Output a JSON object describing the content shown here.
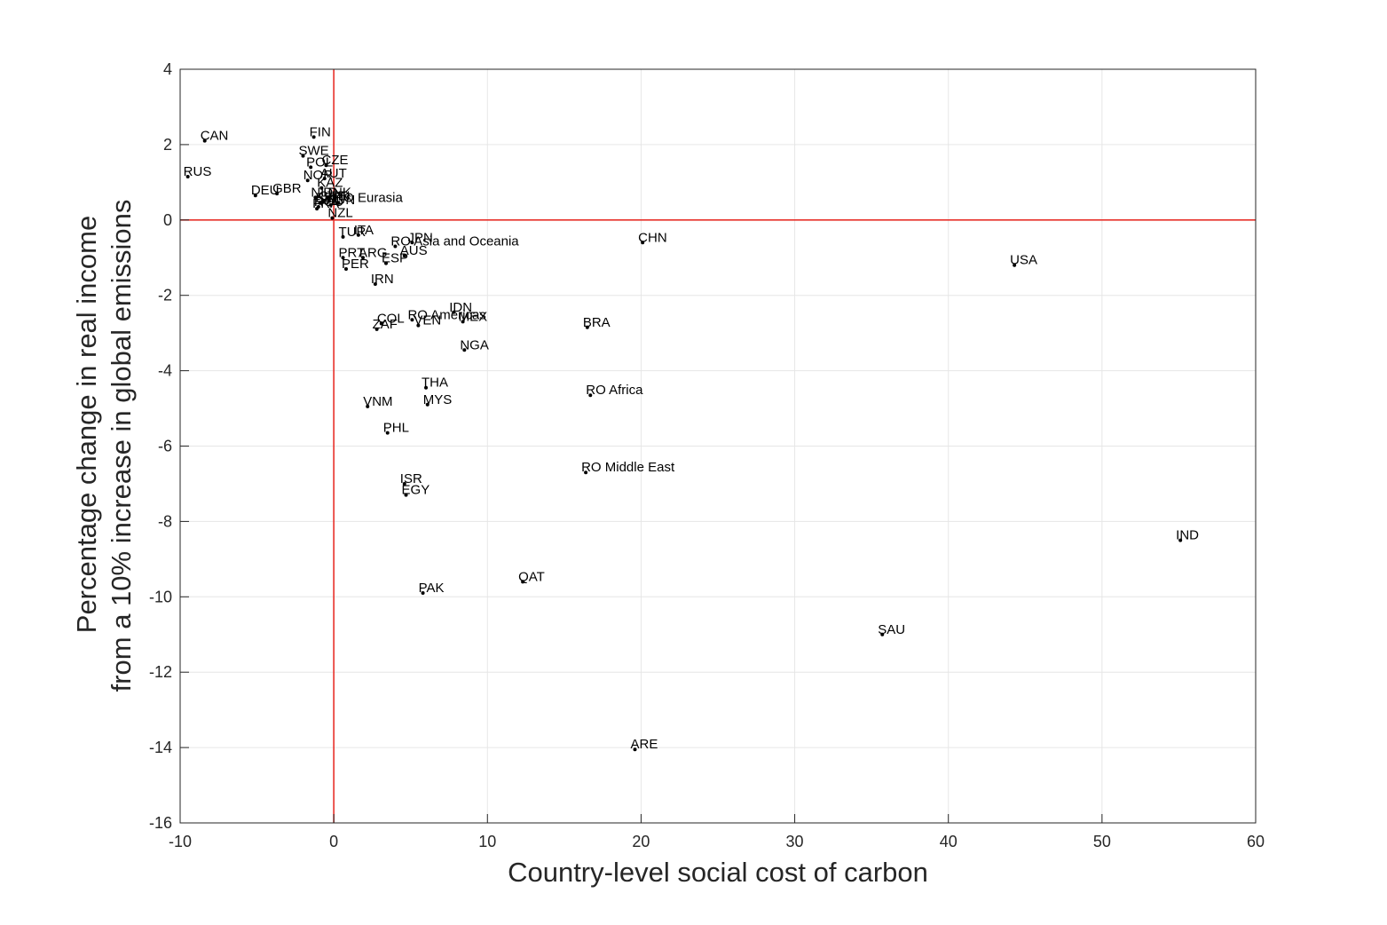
{
  "chart_data": {
    "type": "scatter",
    "title": "",
    "xlabel": "Country-level social cost of carbon",
    "ylabel_lines": [
      "Percentage change in real income",
      "from a 10% increase in global emissions"
    ],
    "xlim": [
      -10,
      60
    ],
    "ylim": [
      -16,
      4
    ],
    "xticks": [
      -10,
      0,
      10,
      20,
      30,
      40,
      50,
      60
    ],
    "yticks": [
      -16,
      -14,
      -12,
      -10,
      -8,
      -6,
      -4,
      -2,
      0,
      2,
      4
    ],
    "grid": true,
    "reference_lines": {
      "x": 0,
      "y": 0,
      "color": "#e8302a"
    },
    "point_color": "#000000",
    "points": [
      {
        "label": "CAN",
        "x": -8.4,
        "y": 2.1
      },
      {
        "label": "RUS",
        "x": -9.5,
        "y": 1.15
      },
      {
        "label": "FIN",
        "x": -1.3,
        "y": 2.2
      },
      {
        "label": "SWE",
        "x": -2.0,
        "y": 1.7
      },
      {
        "label": "POL",
        "x": -1.5,
        "y": 1.4
      },
      {
        "label": "CZE",
        "x": -0.5,
        "y": 1.45
      },
      {
        "label": "NOR",
        "x": -1.7,
        "y": 1.05
      },
      {
        "label": "AUT",
        "x": -0.6,
        "y": 1.1
      },
      {
        "label": "DEU",
        "x": -5.1,
        "y": 0.65
      },
      {
        "label": "GBR",
        "x": -3.7,
        "y": 0.7
      },
      {
        "label": "KAZ",
        "x": -0.8,
        "y": 0.85
      },
      {
        "label": "NLD",
        "x": -1.2,
        "y": 0.6
      },
      {
        "label": "DNK",
        "x": -0.4,
        "y": 0.6
      },
      {
        "label": "BEL",
        "x": -0.9,
        "y": 0.45
      },
      {
        "label": "CHE",
        "x": -0.7,
        "y": 0.5
      },
      {
        "label": "JPN",
        "x": -0.3,
        "y": 0.5
      },
      {
        "label": "ROU",
        "x": -1.0,
        "y": 0.35
      },
      {
        "label": "FRA",
        "x": -1.1,
        "y": 0.3
      },
      {
        "label": "HUN",
        "x": -0.2,
        "y": 0.4
      },
      {
        "label": "RO Eurasia",
        "x": 0.3,
        "y": 0.45
      },
      {
        "label": "NZL",
        "x": -0.1,
        "y": 0.05
      },
      {
        "label": "TUR",
        "x": 0.6,
        "y": -0.45
      },
      {
        "label": "ITA",
        "x": 1.6,
        "y": -0.4
      },
      {
        "label": "IRN",
        "x": 2.7,
        "y": -1.7
      },
      {
        "label": "JPN",
        "x": 5.1,
        "y": -0.6
      },
      {
        "label": "RO Asia and Oceania",
        "x": 4.0,
        "y": -0.7
      },
      {
        "label": "PRT",
        "x": 0.6,
        "y": -1.0
      },
      {
        "label": "ARG",
        "x": 1.9,
        "y": -1.0
      },
      {
        "label": "AUS",
        "x": 4.6,
        "y": -0.95
      },
      {
        "label": "ESP",
        "x": 3.4,
        "y": -1.15
      },
      {
        "label": "PER",
        "x": 0.8,
        "y": -1.3
      },
      {
        "label": "CHN",
        "x": 20.1,
        "y": -0.6
      },
      {
        "label": "USA",
        "x": 44.3,
        "y": -1.2
      },
      {
        "label": "IDN",
        "x": 7.8,
        "y": -2.45
      },
      {
        "label": "RO Americas",
        "x": 5.1,
        "y": -2.65
      },
      {
        "label": "MEX",
        "x": 8.4,
        "y": -2.7
      },
      {
        "label": "COL",
        "x": 3.1,
        "y": -2.75
      },
      {
        "label": "VEN",
        "x": 5.5,
        "y": -2.8
      },
      {
        "label": "ZAF",
        "x": 2.8,
        "y": -2.9
      },
      {
        "label": "BRA",
        "x": 16.5,
        "y": -2.85
      },
      {
        "label": "NGA",
        "x": 8.5,
        "y": -3.45
      },
      {
        "label": "THA",
        "x": 6.0,
        "y": -4.45
      },
      {
        "label": "RO Africa",
        "x": 16.7,
        "y": -4.65
      },
      {
        "label": "MYS",
        "x": 6.1,
        "y": -4.9
      },
      {
        "label": "VNM",
        "x": 2.2,
        "y": -4.95
      },
      {
        "label": "PHL",
        "x": 3.5,
        "y": -5.65
      },
      {
        "label": "RO Middle East",
        "x": 16.4,
        "y": -6.7
      },
      {
        "label": "ISR",
        "x": 4.6,
        "y": -7.0
      },
      {
        "label": "EGY",
        "x": 4.7,
        "y": -7.3
      },
      {
        "label": "IND",
        "x": 55.1,
        "y": -8.5
      },
      {
        "label": "QAT",
        "x": 12.3,
        "y": -9.6
      },
      {
        "label": "PAK",
        "x": 5.8,
        "y": -9.9
      },
      {
        "label": "SAU",
        "x": 35.7,
        "y": -11.0
      },
      {
        "label": "ARE",
        "x": 19.6,
        "y": -14.05
      }
    ]
  }
}
